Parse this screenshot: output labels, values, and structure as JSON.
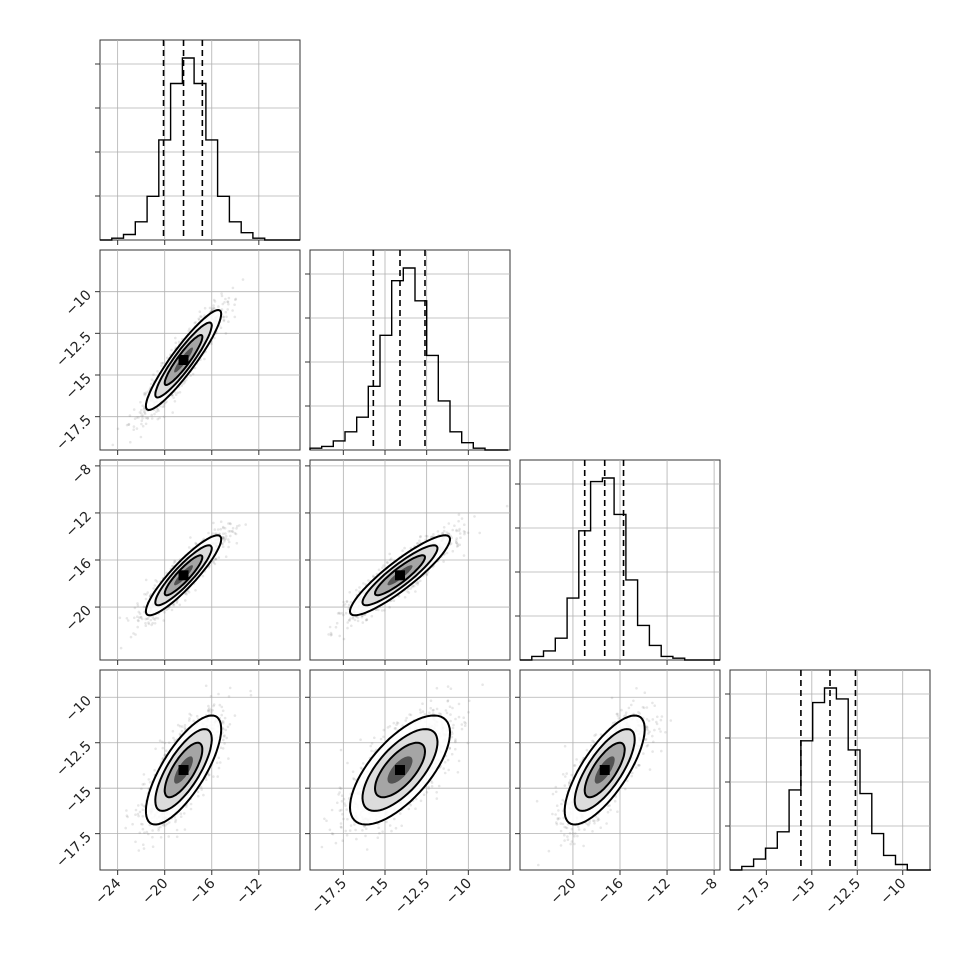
{
  "chart_data": {
    "type": "corner",
    "grid": true,
    "parameters": [
      {
        "index": 0,
        "range": [
          -25.5,
          -8.5
        ],
        "ticks": [
          -24,
          -20,
          -16,
          -12
        ],
        "median": -18.4,
        "q16": -20.1,
        "q84": -16.8,
        "sigma": 1.6,
        "hist": {
          "edges": [
            -25.5,
            -24.5,
            -23.5,
            -22.5,
            -21.5,
            -20.5,
            -19.5,
            -18.5,
            -17.5,
            -16.5,
            -15.5,
            -14.5,
            -13.5,
            -12.5,
            -11.5,
            -10.5,
            -9.5,
            -8.5
          ],
          "counts": [
            0,
            1,
            3,
            10,
            24,
            55,
            86,
            100,
            86,
            55,
            24,
            10,
            4,
            1,
            0,
            0,
            0
          ]
        }
      },
      {
        "index": 1,
        "range": [
          -19.5,
          -7.5
        ],
        "ticks": [
          -17.5,
          -15.0,
          -12.5,
          -10.0
        ],
        "median": -14.1,
        "q16": -15.7,
        "q84": -12.6,
        "sigma": 1.5,
        "hist": {
          "edges": [
            -19.5,
            -18.8,
            -18.1,
            -17.4,
            -16.7,
            -16.0,
            -15.3,
            -14.6,
            -13.9,
            -13.2,
            -12.5,
            -11.8,
            -11.1,
            -10.4,
            -9.7,
            -9.0,
            -8.3,
            -7.6
          ],
          "counts": [
            1,
            2,
            5,
            10,
            18,
            35,
            63,
            93,
            100,
            82,
            52,
            27,
            10,
            4,
            1,
            0,
            0
          ]
        }
      },
      {
        "index": 2,
        "range": [
          -24.5,
          -7.5
        ],
        "ticks": [
          -20,
          -16,
          -12,
          -8
        ],
        "median": -17.3,
        "q16": -19.0,
        "q84": -15.7,
        "sigma": 1.7,
        "hist": {
          "edges": [
            -24.5,
            -23.5,
            -22.5,
            -21.5,
            -20.5,
            -19.5,
            -18.5,
            -17.5,
            -16.5,
            -15.5,
            -14.5,
            -13.5,
            -12.5,
            -11.5,
            -10.5,
            -9.5,
            -8.5,
            -7.5
          ],
          "counts": [
            0,
            2,
            5,
            12,
            34,
            71,
            98,
            100,
            80,
            44,
            19,
            8,
            2,
            1,
            0,
            0,
            0
          ]
        }
      },
      {
        "index": 3,
        "range": [
          -19.5,
          -8.5
        ],
        "ticks": [
          -17.5,
          -15.0,
          -12.5,
          -10.0
        ],
        "median": -14.0,
        "q16": -15.6,
        "q84": -12.6,
        "sigma": 1.5,
        "hist": {
          "edges": [
            -19.5,
            -18.85,
            -18.2,
            -17.55,
            -16.9,
            -16.25,
            -15.6,
            -14.95,
            -14.3,
            -13.65,
            -13.0,
            -12.35,
            -11.7,
            -11.05,
            -10.4,
            -9.75,
            -9.1,
            -8.45
          ],
          "counts": [
            0,
            2,
            6,
            12,
            21,
            44,
            71,
            92,
            100,
            94,
            66,
            42,
            20,
            8,
            3,
            0,
            0
          ]
        }
      }
    ],
    "pairs": [
      {
        "row": 1,
        "col": 0,
        "rho": 0.92
      },
      {
        "row": 2,
        "col": 0,
        "rho": 0.9
      },
      {
        "row": 2,
        "col": 1,
        "rho": 0.9
      },
      {
        "row": 3,
        "col": 0,
        "rho": 0.75
      },
      {
        "row": 3,
        "col": 1,
        "rho": 0.68
      },
      {
        "row": 3,
        "col": 2,
        "rho": 0.75
      }
    ]
  }
}
